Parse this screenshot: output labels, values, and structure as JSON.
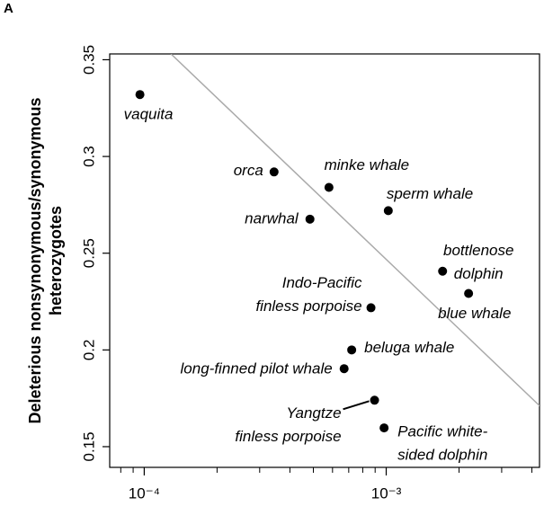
{
  "chart_data": {
    "type": "scatter",
    "panel_label": "A",
    "y_label": [
      "Deleterious nonsynonymous/synonymous",
      "heterozygotes"
    ],
    "x_log": true,
    "xlim": [
      7.2e-05,
      0.0043
    ],
    "ylim": [
      0.1393,
      0.353
    ],
    "xticks": [
      {
        "value": 0.0001,
        "label": "10⁻⁴"
      },
      {
        "value": 0.001,
        "label": "10⁻³"
      }
    ],
    "xminorticks": [
      8e-05,
      9e-05,
      0.0002,
      0.0003,
      0.0004,
      0.0005,
      0.0006,
      0.0007,
      0.0008,
      0.0009,
      0.002,
      0.003,
      0.004
    ],
    "yticks": [
      0.15,
      0.2,
      0.25,
      0.3,
      0.35
    ],
    "color": "#000000",
    "labels": [
      [
        "vaquita"
      ],
      [
        "orca"
      ],
      [
        "minke whale"
      ],
      [
        "narwhal"
      ],
      [
        "sperm whale"
      ],
      [
        "bottlenose",
        "dolphin"
      ],
      [
        "blue whale"
      ],
      [
        "Indo-Pacific",
        "finless porpoise"
      ],
      [
        "beluga whale"
      ],
      [
        "long-finned pilot whale"
      ],
      [
        "Yangtze",
        "finless porpoise"
      ],
      [
        "Pacific white-",
        "sided dolphin"
      ]
    ],
    "x": [
      9.6e-05,
      0.000344,
      0.00058,
      0.000484,
      0.00102,
      0.00171,
      0.00219,
      0.000865,
      0.00072,
      0.00067,
      0.000895,
      0.00098
    ],
    "y": [
      0.332,
      0.292,
      0.284,
      0.2676,
      0.272,
      0.2407,
      0.2292,
      0.2218,
      0.2,
      0.1903,
      0.174,
      0.1597
    ],
    "reference_line": {
      "x": [
        0.000129,
        0.00445
      ],
      "y": [
        0.353,
        0.1694
      ],
      "color": "#aaaaaa"
    }
  }
}
